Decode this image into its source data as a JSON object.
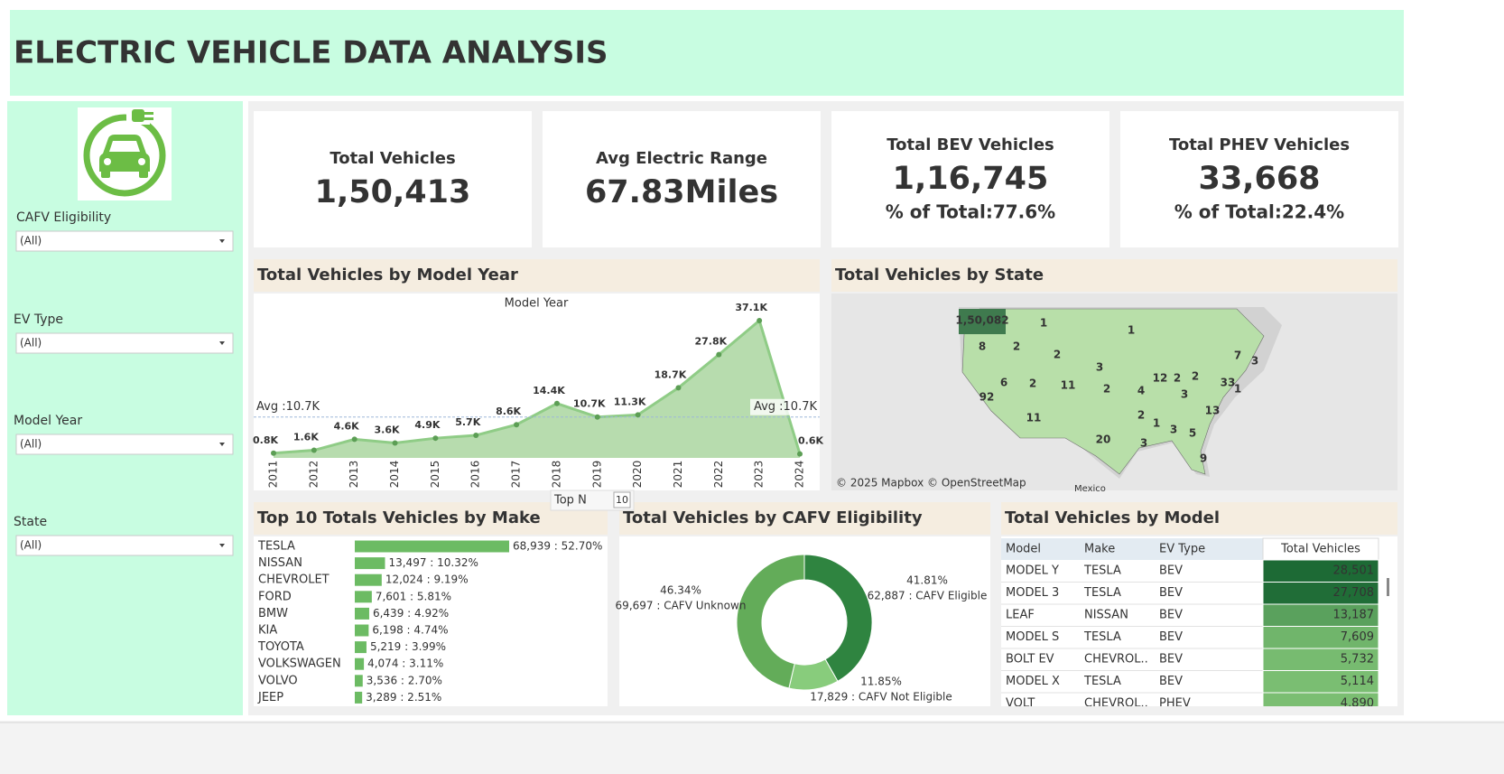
{
  "header": {
    "title": "ELECTRIC VEHICLE DATA ANALYSIS"
  },
  "filters": [
    {
      "label": "CAFV Eligibility",
      "value": "(All)"
    },
    {
      "label": "EV Type",
      "value": "(All)"
    },
    {
      "label": "Model Year",
      "value": "(All)"
    },
    {
      "label": "State",
      "value": "(All)"
    }
  ],
  "kpis": [
    {
      "title": "Total Vehicles",
      "value": "1,50,413"
    },
    {
      "title": "Avg Electric Range",
      "value": "67.83Miles"
    },
    {
      "title": "Total BEV Vehicles",
      "value": "1,16,745",
      "share": "% of Total:77.6%"
    },
    {
      "title": "Total PHEV Vehicles",
      "value": "33,668",
      "share": "% of Total:22.4%"
    }
  ],
  "chart_data": [
    {
      "type": "area",
      "title": "Total Vehicles by Model Year",
      "axis_title": "Model Year",
      "categories": [
        "2011",
        "2012",
        "2013",
        "2014",
        "2015",
        "2016",
        "2017",
        "2018",
        "2019",
        "2020",
        "2021",
        "2022",
        "2023",
        "2024"
      ],
      "values": [
        800,
        1600,
        4600,
        3600,
        4900,
        5700,
        8600,
        14400,
        10700,
        11300,
        18700,
        27800,
        37100,
        600
      ],
      "value_labels": [
        "0.8K",
        "1.6K",
        "4.6K",
        "3.6K",
        "4.9K",
        "5.7K",
        "8.6K",
        "14.4K",
        "10.7K",
        "11.3K",
        "18.7K",
        "27.8K",
        "37.1K",
        "0.6K"
      ],
      "reference_line": {
        "value": 10700,
        "label": "Avg :10.7K"
      },
      "color": "#8fcc86"
    },
    {
      "type": "map",
      "title": "Total Vehicles by State",
      "values": [
        150082,
        1,
        8,
        2,
        2,
        1,
        3,
        92,
        6,
        2,
        11,
        2,
        4,
        12,
        2,
        2,
        7,
        3,
        3,
        33,
        1,
        13,
        11,
        20,
        2,
        1,
        3,
        5,
        3,
        9
      ],
      "value_labels": [
        "1,50,082",
        "1",
        "8",
        "2",
        "2",
        "1",
        "3",
        "92",
        "6",
        "2",
        "11",
        "2",
        "4",
        "12",
        "2",
        "2",
        "7",
        "3",
        "3",
        "33",
        "1",
        "13",
        "11",
        "20",
        "2",
        "1",
        "3",
        "5",
        "3",
        "9"
      ],
      "attribution": "© 2025 Mapbox © OpenStreetMap",
      "place_label": "Mexico",
      "color": "#b8dfa9"
    },
    {
      "type": "bar",
      "orientation": "horizontal",
      "title": "Top 10 Totals Vehicles by Make",
      "categories": [
        "TESLA",
        "NISSAN",
        "CHEVROLET",
        "FORD",
        "BMW",
        "KIA",
        "TOYOTA",
        "VOLKSWAGEN",
        "VOLVO",
        "JEEP"
      ],
      "values": [
        68939,
        13497,
        12024,
        7601,
        6439,
        6198,
        5219,
        4074,
        3536,
        3289
      ],
      "value_labels": [
        "68,939 : 52.70%",
        "13,497 : 10.32%",
        "12,024 : 9.19%",
        "7,601 : 5.81%",
        "6,439 : 4.92%",
        "6,198 : 4.74%",
        "5,219 : 3.99%",
        "4,074 : 3.11%",
        "3,536 : 2.70%",
        "3,289 : 2.51%"
      ],
      "color": "#6cbb63"
    },
    {
      "type": "donut",
      "title": "Total Vehicles by CAFV Eligibility",
      "values": [
        62887,
        17829,
        69697
      ],
      "value_labels": [
        "62,887 : CAFV Eligible",
        "17,829 : CAFV Not Eligible",
        "69,697 : CAFV Unknown"
      ],
      "percent_labels": [
        "41.81%",
        "11.85%",
        "46.34%"
      ],
      "colors": [
        "#2f8440",
        "#88cc7c",
        "#63ac59"
      ]
    }
  ],
  "top_n": {
    "label": "Top N",
    "value": "10"
  },
  "table": {
    "title": "Total Vehicles by Model",
    "columns": [
      "Model",
      "Make",
      "EV Type",
      "Total Vehicles"
    ],
    "rows": [
      [
        "MODEL Y",
        "TESLA",
        "BEV"
      ],
      [
        "MODEL 3",
        "TESLA",
        "BEV"
      ],
      [
        "LEAF",
        "NISSAN",
        "BEV"
      ],
      [
        "MODEL S",
        "TESLA",
        "BEV"
      ],
      [
        "BOLT EV",
        "CHEVROL..",
        "BEV"
      ],
      [
        "MODEL X",
        "TESLA",
        "BEV"
      ],
      [
        "VOLT",
        "CHEVROL..",
        "PHEV"
      ]
    ],
    "values": [
      28501,
      27708,
      13187,
      7609,
      5732,
      5114,
      4890
    ],
    "value_labels": [
      "28,501",
      "27,708",
      "13,187",
      "7,609",
      "5,732",
      "5,114",
      "4,890"
    ]
  }
}
